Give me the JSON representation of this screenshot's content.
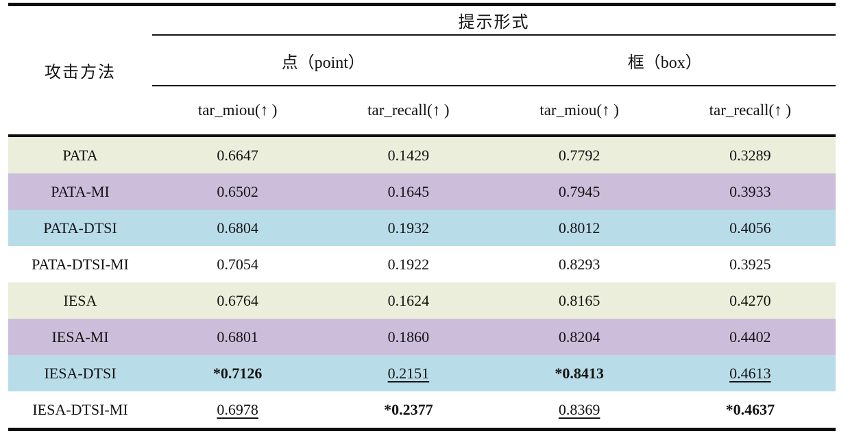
{
  "colors": {
    "row_green": "#ebeeda",
    "row_purple": "#ccbedb",
    "row_blue": "#b9dce9",
    "row_white": "#ffffff",
    "rule": "#0f0f0f",
    "text": "#131313"
  },
  "header": {
    "method_col": "攻击方法",
    "prompt_form": "提示形式",
    "groups": [
      {
        "label": "点（point）"
      },
      {
        "label": "框（box）"
      }
    ],
    "metrics": [
      {
        "label": "tar_miou(↑ )"
      },
      {
        "label": "tar_recall(↑ )"
      },
      {
        "label": "tar_miou(↑ )"
      },
      {
        "label": "tar_recall(↑ )"
      }
    ]
  },
  "rows": [
    {
      "method": "PATA",
      "color": "green",
      "cells": [
        {
          "text": "0.6647",
          "em": "none"
        },
        {
          "text": "0.1429",
          "em": "none"
        },
        {
          "text": "0.7792",
          "em": "none"
        },
        {
          "text": "0.3289",
          "em": "none"
        }
      ]
    },
    {
      "method": "PATA-MI",
      "color": "purple",
      "cells": [
        {
          "text": "0.6502",
          "em": "none"
        },
        {
          "text": "0.1645",
          "em": "none"
        },
        {
          "text": "0.7945",
          "em": "none"
        },
        {
          "text": "0.3933",
          "em": "none"
        }
      ]
    },
    {
      "method": "PATA-DTSI",
      "color": "blue",
      "cells": [
        {
          "text": "0.6804",
          "em": "none"
        },
        {
          "text": "0.1932",
          "em": "none"
        },
        {
          "text": "0.8012",
          "em": "none"
        },
        {
          "text": "0.4056",
          "em": "none"
        }
      ]
    },
    {
      "method": "PATA-DTSI-MI",
      "color": "white",
      "cells": [
        {
          "text": "0.7054",
          "em": "none"
        },
        {
          "text": "0.1922",
          "em": "none"
        },
        {
          "text": "0.8293",
          "em": "none"
        },
        {
          "text": "0.3925",
          "em": "none"
        }
      ]
    },
    {
      "method": "IESA",
      "color": "green",
      "cells": [
        {
          "text": "0.6764",
          "em": "none"
        },
        {
          "text": "0.1624",
          "em": "none"
        },
        {
          "text": "0.8165",
          "em": "none"
        },
        {
          "text": "0.4270",
          "em": "none"
        }
      ]
    },
    {
      "method": "IESA-MI",
      "color": "purple",
      "cells": [
        {
          "text": "0.6801",
          "em": "none"
        },
        {
          "text": "0.1860",
          "em": "none"
        },
        {
          "text": "0.8204",
          "em": "none"
        },
        {
          "text": "0.4402",
          "em": "none"
        }
      ]
    },
    {
      "method": "IESA-DTSI",
      "color": "blue",
      "cells": [
        {
          "text": "*0.7126",
          "em": "best"
        },
        {
          "text": "0.2151",
          "em": "second"
        },
        {
          "text": "*0.8413",
          "em": "best"
        },
        {
          "text": "0.4613",
          "em": "second"
        }
      ]
    },
    {
      "method": "IESA-DTSI-MI",
      "color": "white",
      "cells": [
        {
          "text": "0.6978",
          "em": "second"
        },
        {
          "text": "*0.2377",
          "em": "best"
        },
        {
          "text": "0.8369",
          "em": "second"
        },
        {
          "text": "*0.4637",
          "em": "best"
        }
      ]
    }
  ]
}
